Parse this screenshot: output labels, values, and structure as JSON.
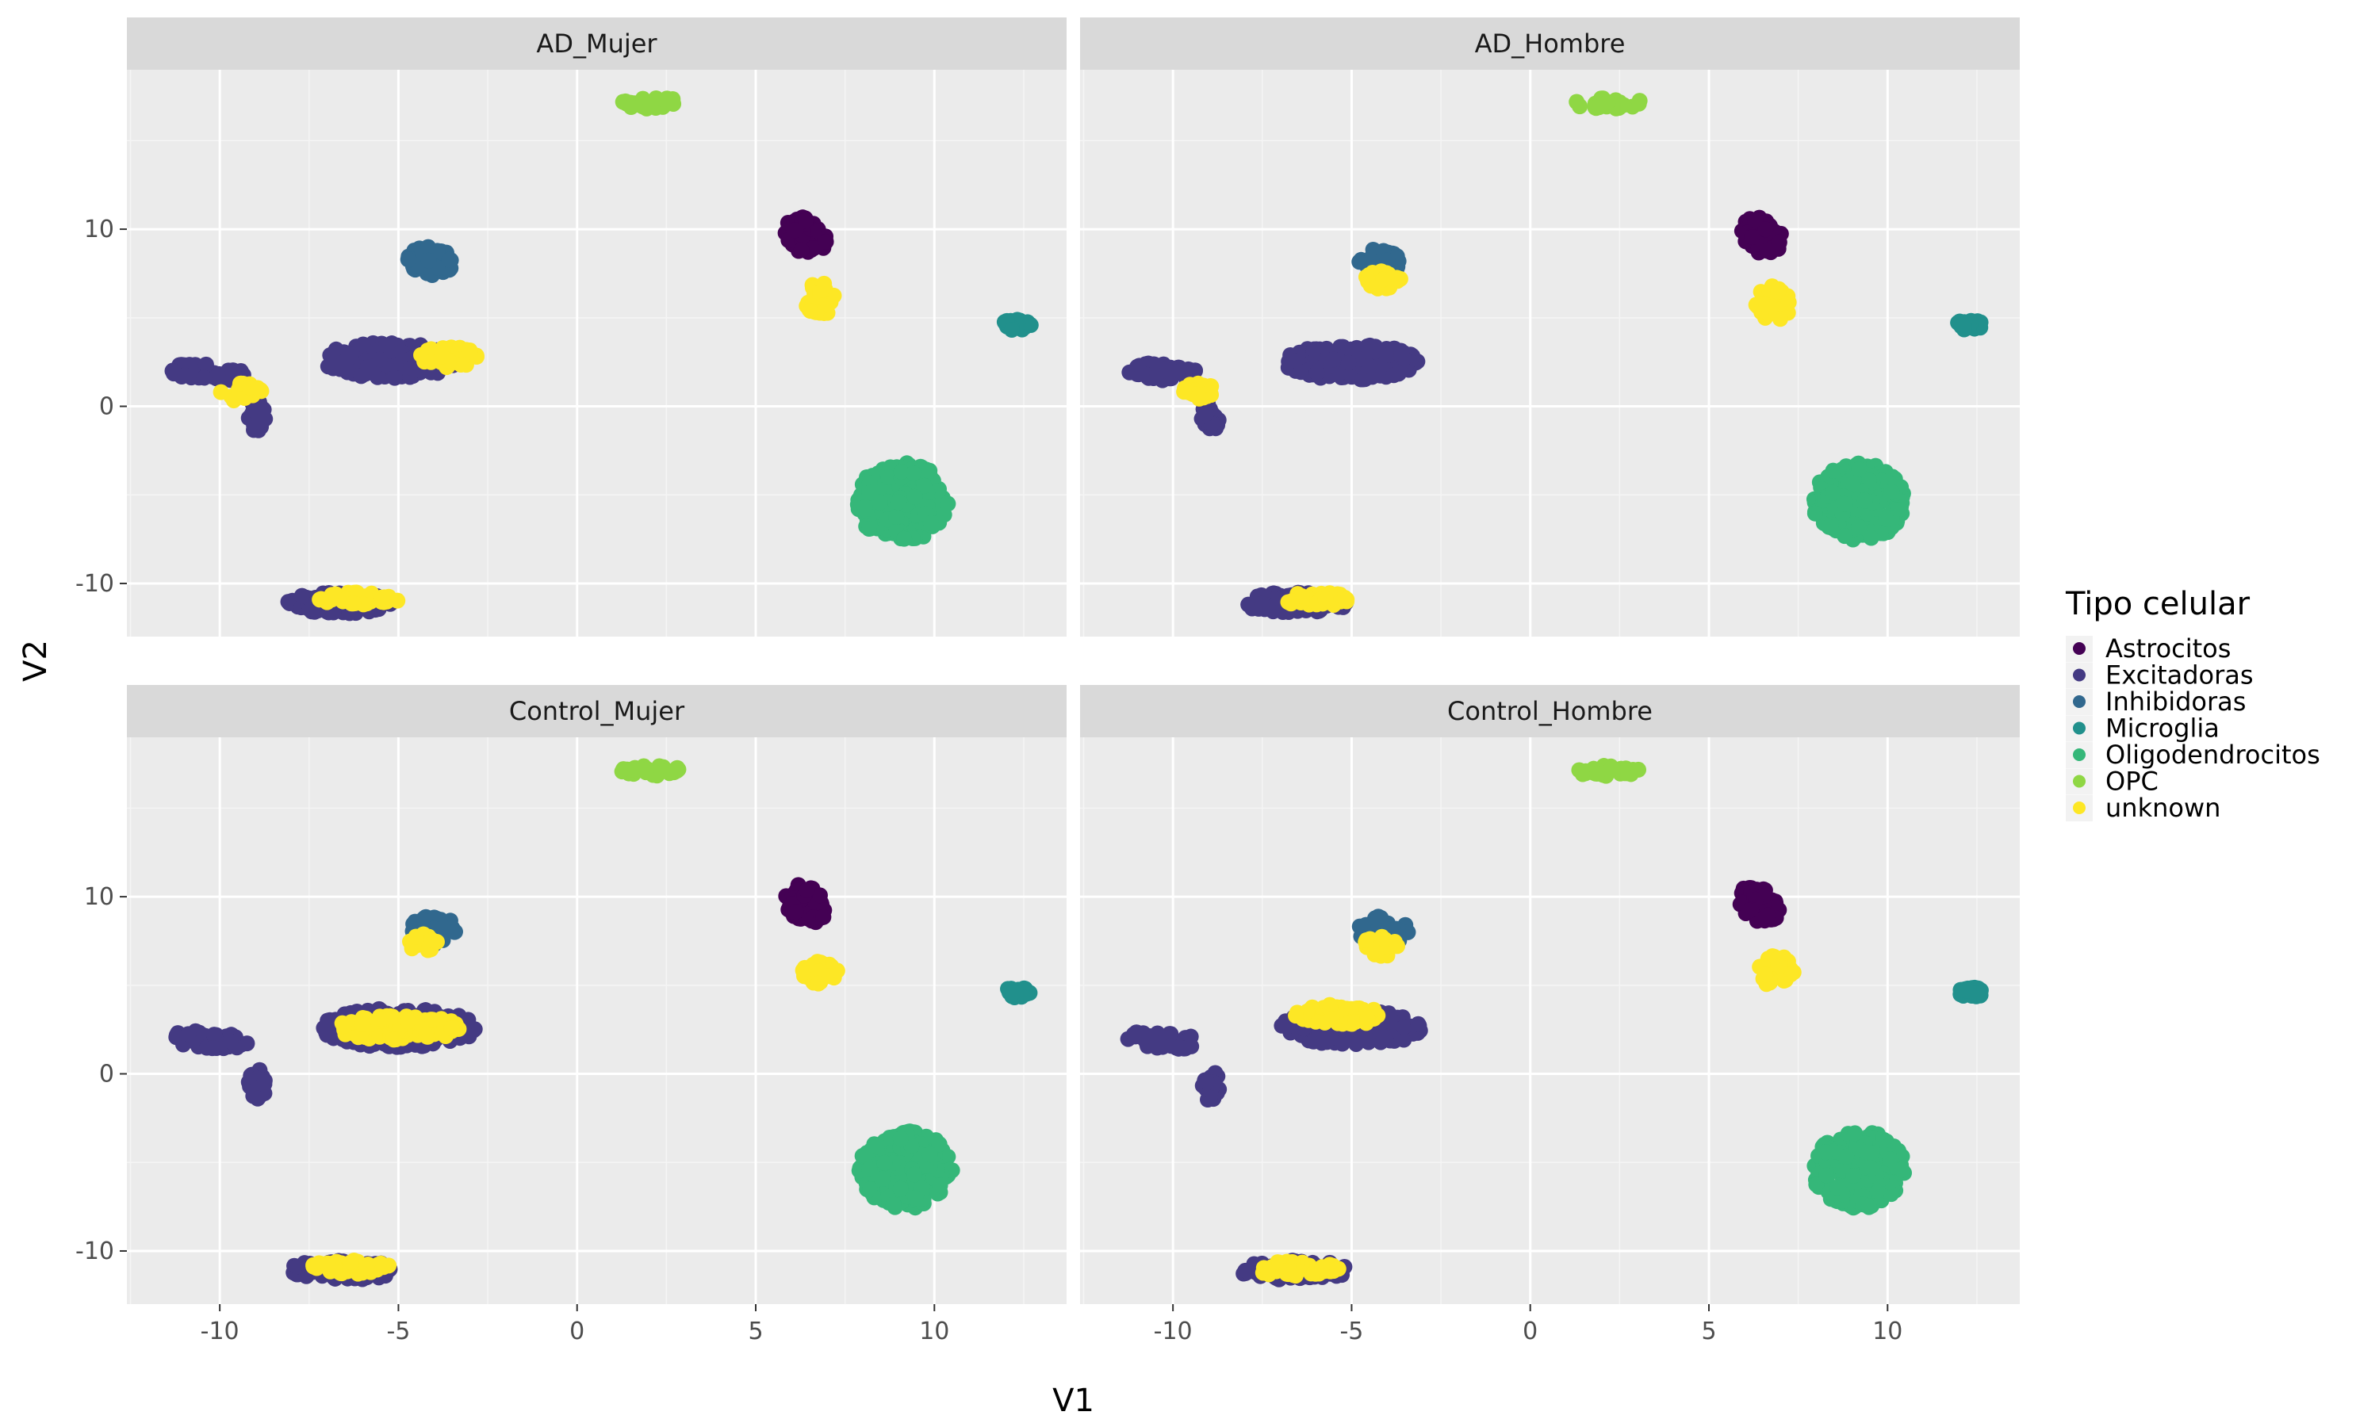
{
  "chart_data": {
    "type": "scatter",
    "xlabel": "V1",
    "ylabel": "V2",
    "xlim": [
      -12.6,
      13.7
    ],
    "ylim": [
      -13,
      19
    ],
    "x_ticks": [
      -10,
      -5,
      0,
      5,
      10
    ],
    "y_ticks": [
      -10,
      0,
      10
    ],
    "x_tick_labels": [
      "-10",
      "-5",
      "0",
      "5",
      "10"
    ],
    "y_tick_labels": [
      "-10",
      "0",
      "10"
    ],
    "grid": true,
    "legend": {
      "title": "Tipo celular",
      "placement": "right",
      "entries": [
        {
          "name": "Astrocitos",
          "color": "#440154"
        },
        {
          "name": "Excitadoras",
          "color": "#443A83"
        },
        {
          "name": "Inhibidoras",
          "color": "#31688E"
        },
        {
          "name": "Microglia",
          "color": "#21908C"
        },
        {
          "name": "Oligodendrocitos",
          "color": "#35B779"
        },
        {
          "name": "OPC",
          "color": "#8FD744"
        },
        {
          "name": "unknown",
          "color": "#FDE725"
        }
      ]
    },
    "panels": [
      {
        "title": "AD_Mujer",
        "clusters": [
          {
            "type": "Excitadoras",
            "cx": -10.3,
            "cy": 1.9,
            "rx": 1.1,
            "ry": 0.5,
            "angle": -10
          },
          {
            "type": "Excitadoras",
            "cx": -8.95,
            "cy": -0.6,
            "rx": 0.25,
            "ry": 0.9,
            "angle": 0
          },
          {
            "type": "Excitadoras",
            "cx": -5.2,
            "cy": 2.6,
            "rx": 2.0,
            "ry": 1.0,
            "angle": 0
          },
          {
            "type": "Excitadoras",
            "cx": -6.6,
            "cy": -11.1,
            "rx": 1.5,
            "ry": 0.6,
            "angle": 0
          },
          {
            "type": "Inhibidoras",
            "cx": -4.1,
            "cy": 8.2,
            "rx": 0.7,
            "ry": 0.8,
            "angle": 0
          },
          {
            "type": "Astrocitos",
            "cx": 6.4,
            "cy": 9.6,
            "rx": 0.55,
            "ry": 1.1,
            "angle": 10
          },
          {
            "type": "Oligodendrocitos",
            "cx": 9.1,
            "cy": -5.4,
            "rx": 1.3,
            "ry": 2.2,
            "angle": 0
          },
          {
            "type": "OPC",
            "cx": 2.2,
            "cy": 17.1,
            "rx": 1.0,
            "ry": 0.3,
            "angle": 0
          },
          {
            "type": "Microglia",
            "cx": 12.3,
            "cy": 4.6,
            "rx": 0.4,
            "ry": 0.3,
            "angle": 0
          },
          {
            "type": "unknown",
            "cx": 6.8,
            "cy": 6.0,
            "rx": 0.4,
            "ry": 1.0,
            "angle": 0
          },
          {
            "type": "unknown",
            "cx": -3.6,
            "cy": 2.8,
            "rx": 0.8,
            "ry": 0.6,
            "angle": 0
          },
          {
            "type": "unknown",
            "cx": -6.2,
            "cy": -10.9,
            "rx": 1.2,
            "ry": 0.4,
            "angle": 0
          },
          {
            "type": "unknown",
            "cx": -9.4,
            "cy": 0.8,
            "rx": 0.6,
            "ry": 0.5,
            "angle": 0
          }
        ]
      },
      {
        "title": "AD_Hombre",
        "clusters": [
          {
            "type": "Excitadoras",
            "cx": -10.3,
            "cy": 1.9,
            "rx": 1.1,
            "ry": 0.5,
            "angle": -10
          },
          {
            "type": "Excitadoras",
            "cx": -8.95,
            "cy": -0.6,
            "rx": 0.25,
            "ry": 0.9,
            "angle": 0
          },
          {
            "type": "Excitadoras",
            "cx": -5.0,
            "cy": 2.5,
            "rx": 1.9,
            "ry": 1.0,
            "angle": 0
          },
          {
            "type": "Excitadoras",
            "cx": -6.6,
            "cy": -11.1,
            "rx": 1.5,
            "ry": 0.6,
            "angle": 0
          },
          {
            "type": "Inhibidoras",
            "cx": -4.2,
            "cy": 8.1,
            "rx": 0.6,
            "ry": 0.8,
            "angle": 0
          },
          {
            "type": "Astrocitos",
            "cx": 6.5,
            "cy": 9.6,
            "rx": 0.55,
            "ry": 1.1,
            "angle": 10
          },
          {
            "type": "Oligodendrocitos",
            "cx": 9.2,
            "cy": -5.4,
            "rx": 1.3,
            "ry": 2.2,
            "angle": 0
          },
          {
            "type": "OPC",
            "cx": 2.2,
            "cy": 17.1,
            "rx": 1.0,
            "ry": 0.3,
            "angle": 0
          },
          {
            "type": "Microglia",
            "cx": 12.3,
            "cy": 4.6,
            "rx": 0.4,
            "ry": 0.3,
            "angle": 0
          },
          {
            "type": "unknown",
            "cx": 6.8,
            "cy": 5.8,
            "rx": 0.5,
            "ry": 1.0,
            "angle": 0
          },
          {
            "type": "unknown",
            "cx": -4.1,
            "cy": 7.2,
            "rx": 0.5,
            "ry": 0.6,
            "angle": 0
          },
          {
            "type": "unknown",
            "cx": -6.0,
            "cy": -10.9,
            "rx": 1.0,
            "ry": 0.4,
            "angle": 0
          },
          {
            "type": "unknown",
            "cx": -9.2,
            "cy": 0.9,
            "rx": 0.5,
            "ry": 0.5,
            "angle": 0
          }
        ]
      },
      {
        "title": "Control_Mujer",
        "clusters": [
          {
            "type": "Excitadoras",
            "cx": -10.3,
            "cy": 1.9,
            "rx": 1.1,
            "ry": 0.5,
            "angle": -10
          },
          {
            "type": "Excitadoras",
            "cx": -8.95,
            "cy": -0.6,
            "rx": 0.25,
            "ry": 0.9,
            "angle": 0
          },
          {
            "type": "Excitadoras",
            "cx": -5.0,
            "cy": 2.6,
            "rx": 2.2,
            "ry": 1.1,
            "angle": 0
          },
          {
            "type": "Excitadoras",
            "cx": -6.6,
            "cy": -11.1,
            "rx": 1.5,
            "ry": 0.6,
            "angle": 0
          },
          {
            "type": "Inhibidoras",
            "cx": -4.0,
            "cy": 8.1,
            "rx": 0.7,
            "ry": 0.8,
            "angle": 0
          },
          {
            "type": "Astrocitos",
            "cx": 6.4,
            "cy": 9.6,
            "rx": 0.55,
            "ry": 1.1,
            "angle": 10
          },
          {
            "type": "Oligodendrocitos",
            "cx": 9.2,
            "cy": -5.4,
            "rx": 1.3,
            "ry": 2.2,
            "angle": 0
          },
          {
            "type": "OPC",
            "cx": 2.2,
            "cy": 17.1,
            "rx": 1.0,
            "ry": 0.3,
            "angle": 0
          },
          {
            "type": "Microglia",
            "cx": 12.3,
            "cy": 4.6,
            "rx": 0.4,
            "ry": 0.3,
            "angle": 0
          },
          {
            "type": "unknown",
            "cx": 6.8,
            "cy": 5.7,
            "rx": 0.5,
            "ry": 0.7,
            "angle": 0
          },
          {
            "type": "unknown",
            "cx": -5.0,
            "cy": 2.6,
            "rx": 1.8,
            "ry": 0.7,
            "angle": 0
          },
          {
            "type": "unknown",
            "cx": -6.4,
            "cy": -10.9,
            "rx": 1.2,
            "ry": 0.4,
            "angle": 0
          },
          {
            "type": "unknown",
            "cx": -4.4,
            "cy": 7.4,
            "rx": 0.5,
            "ry": 0.5,
            "angle": 0
          }
        ]
      },
      {
        "title": "Control_Hombre",
        "clusters": [
          {
            "type": "Excitadoras",
            "cx": -10.3,
            "cy": 1.9,
            "rx": 1.1,
            "ry": 0.5,
            "angle": -10
          },
          {
            "type": "Excitadoras",
            "cx": -8.95,
            "cy": -0.6,
            "rx": 0.25,
            "ry": 0.9,
            "angle": 0
          },
          {
            "type": "Excitadoras",
            "cx": -5.0,
            "cy": 2.6,
            "rx": 2.0,
            "ry": 1.0,
            "angle": 0
          },
          {
            "type": "Excitadoras",
            "cx": -6.6,
            "cy": -11.1,
            "rx": 1.5,
            "ry": 0.6,
            "angle": 0
          },
          {
            "type": "Inhibidoras",
            "cx": -4.1,
            "cy": 8.1,
            "rx": 0.7,
            "ry": 0.8,
            "angle": 0
          },
          {
            "type": "Astrocitos",
            "cx": 6.4,
            "cy": 9.6,
            "rx": 0.55,
            "ry": 1.1,
            "angle": 10
          },
          {
            "type": "Oligodendrocitos",
            "cx": 9.2,
            "cy": -5.4,
            "rx": 1.3,
            "ry": 2.2,
            "angle": 0
          },
          {
            "type": "OPC",
            "cx": 2.2,
            "cy": 17.1,
            "rx": 1.0,
            "ry": 0.3,
            "angle": 0
          },
          {
            "type": "Microglia",
            "cx": 12.3,
            "cy": 4.6,
            "rx": 0.4,
            "ry": 0.3,
            "angle": 0
          },
          {
            "type": "unknown",
            "cx": 6.9,
            "cy": 5.8,
            "rx": 0.5,
            "ry": 0.9,
            "angle": 0
          },
          {
            "type": "unknown",
            "cx": -4.2,
            "cy": 7.2,
            "rx": 0.5,
            "ry": 0.6,
            "angle": 0
          },
          {
            "type": "unknown",
            "cx": -5.4,
            "cy": 3.3,
            "rx": 1.2,
            "ry": 0.6,
            "angle": 0
          },
          {
            "type": "unknown",
            "cx": -6.6,
            "cy": -11.0,
            "rx": 1.3,
            "ry": 0.4,
            "angle": 0
          }
        ]
      }
    ]
  }
}
